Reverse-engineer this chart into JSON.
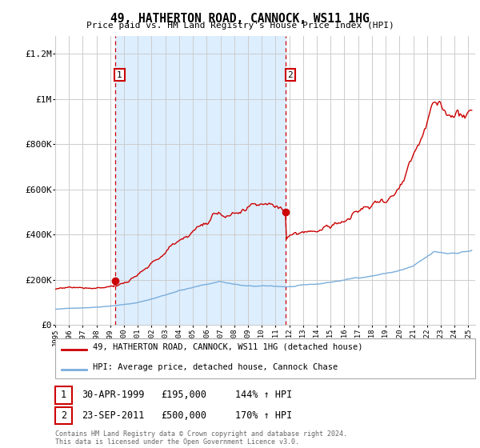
{
  "title": "49, HATHERTON ROAD, CANNOCK, WS11 1HG",
  "subtitle": "Price paid vs. HM Land Registry's House Price Index (HPI)",
  "red_label": "49, HATHERTON ROAD, CANNOCK, WS11 1HG (detached house)",
  "blue_label": "HPI: Average price, detached house, Cannock Chase",
  "sale1_date": 1999.33,
  "sale1_price": 195000,
  "sale1_label": "1",
  "sale1_text": "30-APR-1999",
  "sale1_pct": "144%",
  "sale2_date": 2011.73,
  "sale2_price": 500000,
  "sale2_label": "2",
  "sale2_text": "23-SEP-2011",
  "sale2_pct": "170%",
  "xmin": 1995.0,
  "xmax": 2025.5,
  "ymin": 0,
  "ymax": 1280000,
  "yticks": [
    0,
    200000,
    400000,
    600000,
    800000,
    1000000,
    1200000
  ],
  "ytick_labels": [
    "£0",
    "£200K",
    "£400K",
    "£600K",
    "£800K",
    "£1M",
    "£1.2M"
  ],
  "background_color": "#ffffff",
  "plot_bg_color": "#ffffff",
  "shade_color": "#ddeeff",
  "grid_color": "#cccccc",
  "red_color": "#cc0000",
  "blue_color": "#7aaddb",
  "vline_color": "#cc0000",
  "footnote": "Contains HM Land Registry data © Crown copyright and database right 2024.\nThis data is licensed under the Open Government Licence v3.0."
}
